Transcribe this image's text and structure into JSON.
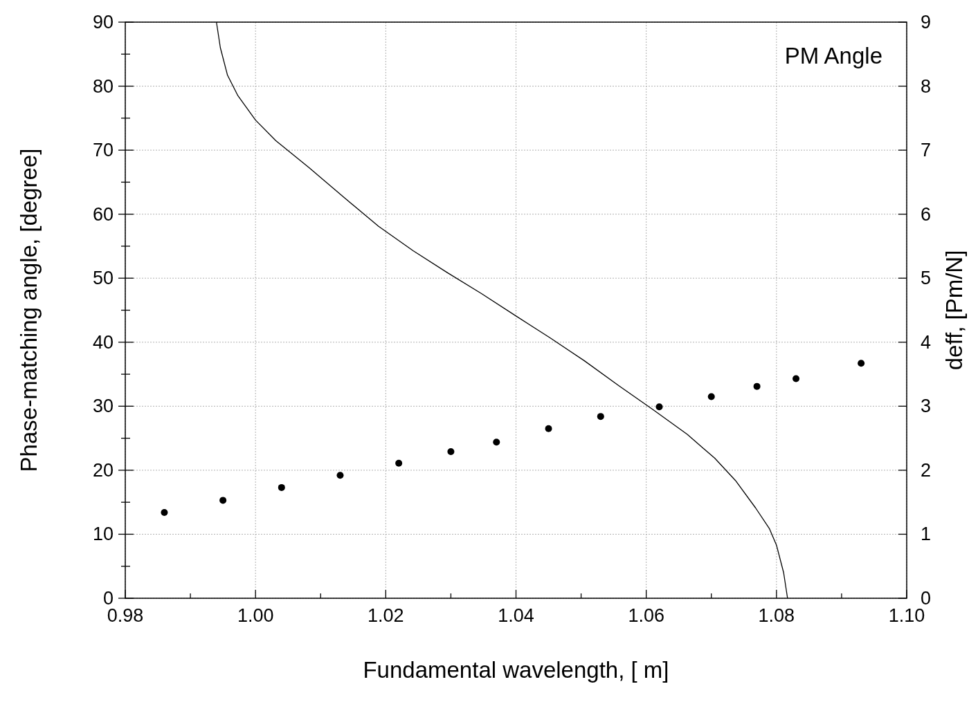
{
  "chart_data": {
    "type": "line",
    "xlabel": "Fundamental wavelength, [   m]",
    "ylabel": "Phase-matching angle, [degree]",
    "y2label": "deff, [Pm/N]",
    "annotations": [
      "PM Angle"
    ],
    "xlim": [
      0.98,
      1.1
    ],
    "xticks": [
      0.98,
      {
        "value": 0.99,
        "label": null
      },
      {
        "value": 1.0,
        "label": "1.00"
      },
      {
        "value": 1.01,
        "label": null
      },
      1.02,
      {
        "value": 1.03,
        "label": null
      },
      1.04,
      {
        "value": 1.05,
        "label": null
      },
      1.06,
      {
        "value": 1.07,
        "label": null
      },
      1.08,
      {
        "value": 1.09,
        "label": null
      },
      {
        "value": 1.1,
        "label": "1.10"
      }
    ],
    "ylim": [
      0,
      90
    ],
    "yticks": [
      0,
      {
        "value": 5,
        "label": null
      },
      10,
      {
        "value": 15,
        "label": null
      },
      20,
      {
        "value": 25,
        "label": null
      },
      30,
      {
        "value": 35,
        "label": null
      },
      40,
      {
        "value": 45,
        "label": null
      },
      50,
      {
        "value": 55,
        "label": null
      },
      60,
      {
        "value": 65,
        "label": null
      },
      70,
      {
        "value": 75,
        "label": null
      },
      80,
      {
        "value": 85,
        "label": null
      },
      90
    ],
    "y2lim": [
      0,
      9
    ],
    "y2ticks": [
      0,
      1,
      2,
      3,
      4,
      5,
      6,
      7,
      8,
      9
    ],
    "grid": true,
    "series": [
      {
        "color": "#000000",
        "marker": "none",
        "x": [
          0.994,
          0.9946,
          0.9957,
          0.9973,
          1.0,
          1.0031,
          1.0083,
          1.0136,
          1.0189,
          1.0242,
          1.0294,
          1.0347,
          1.04,
          1.0452,
          1.0505,
          1.0558,
          1.061,
          1.0663,
          1.0705,
          1.0737,
          1.0768,
          1.0789,
          1.08,
          1.0811,
          1.0817
        ],
        "values": [
          90,
          86,
          81.7,
          78.5,
          74.7,
          71.5,
          67.2,
          62.6,
          58.1,
          54.3,
          50.9,
          47.6,
          44.1,
          40.7,
          37.1,
          33.2,
          29.5,
          25.6,
          21.9,
          18.4,
          14.1,
          10.9,
          8.3,
          4.0,
          0
        ]
      },
      {
        "type": "scatter",
        "axis": "y2",
        "color": "#000000",
        "marker": "circle",
        "x": [
          0.986,
          0.995,
          1.004,
          1.013,
          1.022,
          1.03,
          1.037,
          1.045,
          1.053,
          1.062,
          1.07,
          1.077,
          1.083,
          1.093
        ],
        "values": [
          1.34,
          1.53,
          1.73,
          1.92,
          2.11,
          2.29,
          2.44,
          2.65,
          2.84,
          2.99,
          3.15,
          3.31,
          3.43,
          3.67
        ]
      }
    ]
  }
}
